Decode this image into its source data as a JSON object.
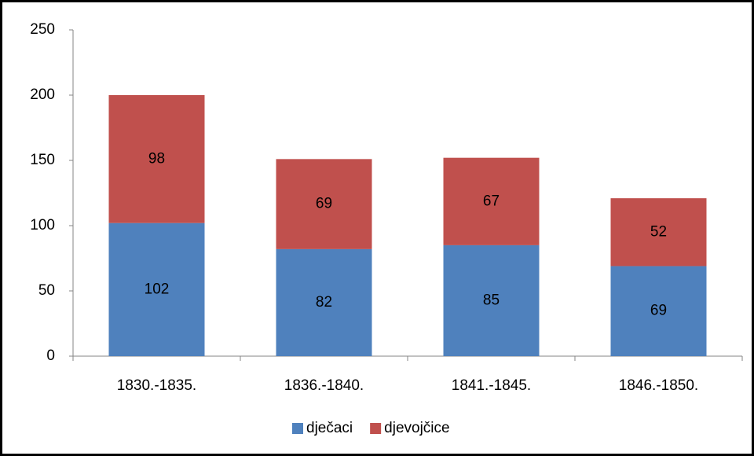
{
  "chart_data": {
    "type": "stacked_bar",
    "categories": [
      "1830.-1835.",
      "1836.-1840.",
      "1841.-1845.",
      "1846.-1850."
    ],
    "series": [
      {
        "name": "dječaci",
        "color": "#4f81bd",
        "values": [
          102,
          82,
          85,
          69
        ]
      },
      {
        "name": "djevojčice",
        "color": "#c0504d",
        "values": [
          98,
          69,
          67,
          52
        ]
      }
    ],
    "ylim": [
      0,
      250
    ],
    "yticks": [
      0,
      50,
      100,
      150,
      200,
      250
    ],
    "grid": false,
    "legend": "bottom"
  }
}
